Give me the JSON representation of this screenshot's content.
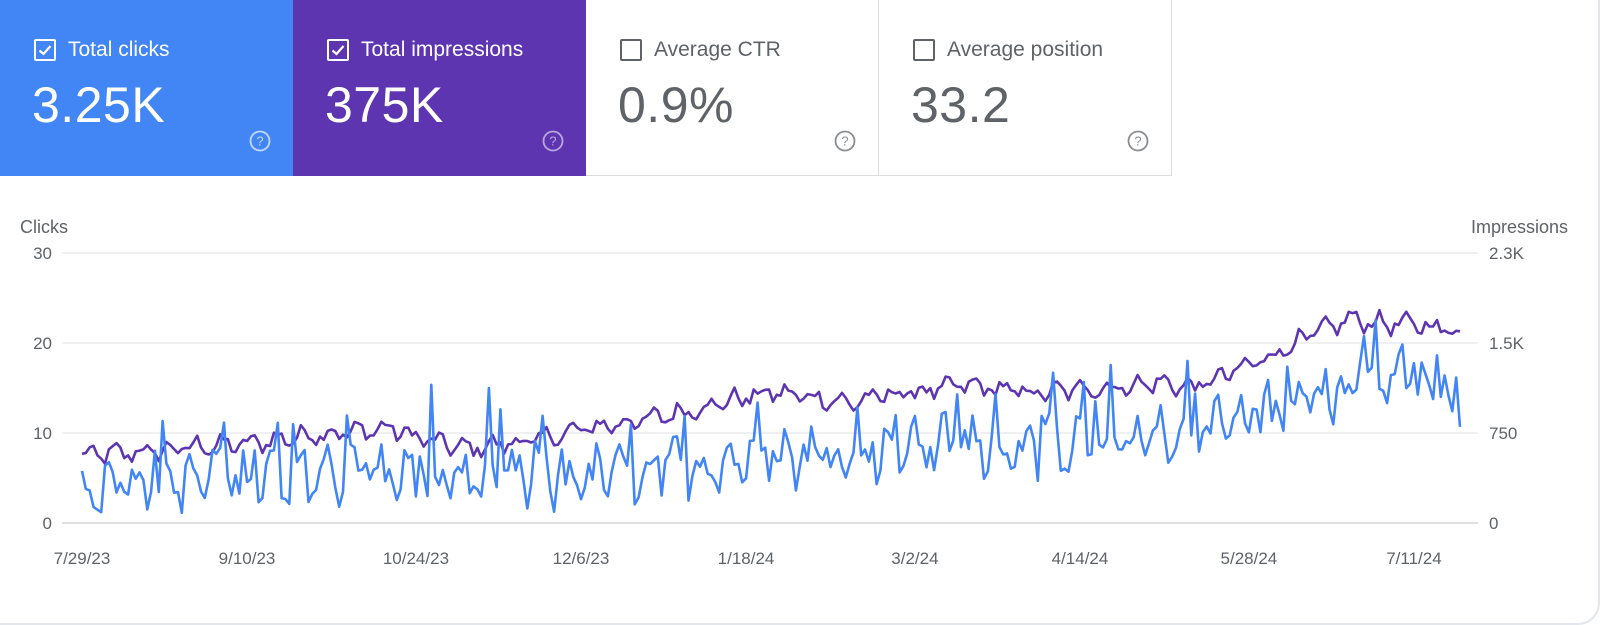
{
  "colors": {
    "clicks": "#4285f4",
    "impressions": "#5e35b1",
    "grid": "#e6e8eb",
    "axis_text": "#5f6368"
  },
  "cards": [
    {
      "label": "Total clicks",
      "value": "3.25K",
      "checked": true
    },
    {
      "label": "Total impressions",
      "value": "375K",
      "checked": true
    },
    {
      "label": "Average CTR",
      "value": "0.9%",
      "checked": false
    },
    {
      "label": "Average position",
      "value": "33.2",
      "checked": false
    }
  ],
  "chart_data": {
    "type": "line",
    "left_axis_label": "Clicks",
    "right_axis_label": "Impressions",
    "left_ylim": [
      0,
      30
    ],
    "right_ylim": [
      0,
      2250
    ],
    "left_ticks": [
      "0",
      "10",
      "20",
      "30"
    ],
    "right_ticks": [
      "0",
      "750",
      "1.5K",
      "2.3K"
    ],
    "x_tick_labels": [
      "7/29/23",
      "9/10/23",
      "10/24/23",
      "12/6/23",
      "1/18/24",
      "3/2/24",
      "4/14/24",
      "5/28/24",
      "7/11/24"
    ],
    "x_tick_days": [
      0,
      43,
      87,
      130,
      173,
      217,
      260,
      304,
      347
    ],
    "num_days": 360,
    "series": [
      {
        "name": "Impressions",
        "axis": "right",
        "anchors_day": [
          0,
          10,
          20,
          30,
          40,
          50,
          60,
          70,
          80,
          90,
          100,
          110,
          120,
          130,
          140,
          150,
          160,
          170,
          180,
          190,
          200,
          210,
          220,
          230,
          240,
          250,
          260,
          270,
          280,
          290,
          300,
          310,
          320,
          330,
          340,
          350,
          359
        ],
        "anchors_value": [
          560,
          580,
          600,
          640,
          650,
          690,
          740,
          760,
          790,
          690,
          620,
          660,
          700,
          780,
          830,
          880,
          950,
          1030,
          1090,
          1050,
          1000,
          1070,
          1100,
          1150,
          1110,
          1080,
          1120,
          1130,
          1170,
          1130,
          1260,
          1400,
          1560,
          1700,
          1660,
          1650,
          1590
        ],
        "amplitude": 90
      },
      {
        "name": "Clicks",
        "axis": "left",
        "anchors_day": [
          0,
          10,
          20,
          30,
          40,
          50,
          60,
          70,
          80,
          90,
          100,
          110,
          120,
          130,
          140,
          150,
          160,
          170,
          180,
          190,
          200,
          210,
          220,
          230,
          240,
          250,
          260,
          270,
          280,
          290,
          300,
          310,
          320,
          330,
          340,
          350,
          359
        ],
        "anchors_value": [
          4,
          4.5,
          4.5,
          4.5,
          5,
          5.5,
          5.5,
          5.5,
          5.5,
          5,
          5,
          5,
          4.5,
          5,
          5.5,
          6,
          6.5,
          7,
          7.5,
          7.5,
          8,
          8,
          8.5,
          9,
          8.5,
          8.5,
          9,
          9,
          9.5,
          10,
          11,
          12.5,
          14,
          15,
          16,
          15.5,
          12
        ],
        "amplitude": 3.5
      }
    ]
  }
}
